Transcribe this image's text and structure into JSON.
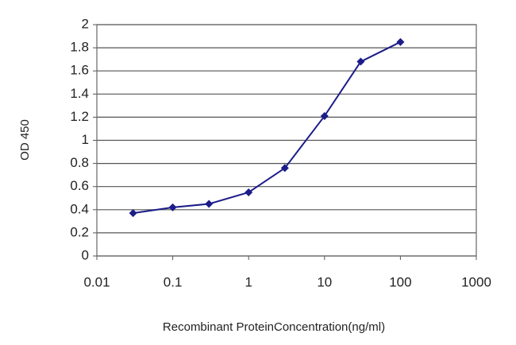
{
  "chart_data": {
    "type": "line",
    "xlabel": "Recombinant ProteinConcentration(ng/ml)",
    "ylabel": "OD 450",
    "x": [
      0.03,
      0.1,
      0.3,
      1,
      3,
      10,
      30,
      100
    ],
    "values": [
      0.37,
      0.42,
      0.45,
      0.55,
      0.76,
      1.21,
      1.68,
      1.85
    ],
    "color": "#1c1c8a",
    "xscale": "log",
    "xlim": [
      0.01,
      1000
    ],
    "xticks": [
      0.01,
      0.1,
      1,
      10,
      100,
      1000
    ],
    "ylim": [
      0,
      2
    ],
    "yticks": [
      0,
      0.2,
      0.4,
      0.6,
      0.8,
      1,
      1.2,
      1.4,
      1.6,
      1.8,
      2
    ],
    "grid": true
  }
}
